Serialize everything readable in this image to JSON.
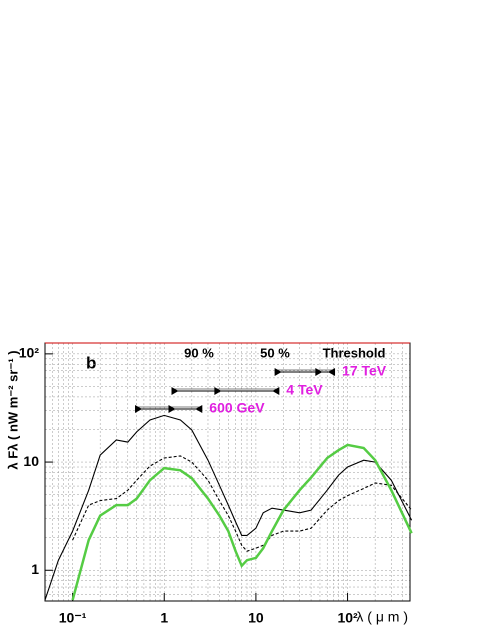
{
  "chart_data": {
    "type": "line",
    "panel_label": "b",
    "x_label": "λ ( μ m )",
    "y_label": "λ Fλ ( nW m⁻² sr⁻¹ )",
    "log_x": true,
    "log_y": true,
    "grid": true,
    "xlim": [
      0.05,
      480
    ],
    "ylim": [
      0.52,
      126
    ],
    "xticks": [
      {
        "value": 0.1,
        "label": "10⁻¹"
      },
      1,
      10,
      {
        "value": 100,
        "label": "10²"
      }
    ],
    "yticks": [
      1,
      10,
      {
        "value": 100,
        "label": "10²"
      }
    ],
    "x": [
      0.05,
      0.07,
      0.1,
      0.15,
      0.2,
      0.3,
      0.4,
      0.5,
      0.7,
      1,
      1.5,
      2,
      3,
      4,
      5,
      6,
      7,
      8,
      10,
      12,
      15,
      20,
      30,
      40,
      60,
      80,
      100,
      150,
      200,
      300,
      500
    ],
    "series": [
      {
        "color": "#000000",
        "dash": false,
        "values": [
          0.53,
          1.24,
          2.3,
          5.5,
          11.6,
          16,
          15.3,
          19,
          24.5,
          27,
          24.5,
          19.8,
          10.4,
          6.1,
          4.0,
          2.8,
          2.1,
          2.1,
          2.45,
          3.4,
          3.75,
          3.6,
          3.4,
          3.6,
          5.5,
          7.6,
          9.0,
          10.4,
          10,
          6.8,
          2.9
        ]
      },
      {
        "color": "#000000",
        "dash": true,
        "values": [
          null,
          null,
          1.9,
          4.0,
          4.4,
          4.6,
          5.5,
          6.8,
          9.2,
          10.9,
          11.4,
          10,
          6.8,
          4.4,
          3.2,
          2.3,
          1.7,
          1.5,
          1.6,
          1.7,
          2.1,
          2.3,
          2.3,
          2.45,
          3.6,
          4.4,
          4.9,
          5.7,
          6.4,
          6.1,
          3.6
        ]
      },
      {
        "color": "#55cc44",
        "dash": false,
        "values": [
          null,
          null,
          0.53,
          1.9,
          3.2,
          4.0,
          4.0,
          4.6,
          6.8,
          8.8,
          8.4,
          7.1,
          4.6,
          3.2,
          2.3,
          1.5,
          1.1,
          1.24,
          1.3,
          1.6,
          2.3,
          3.6,
          5.5,
          7.2,
          10.9,
          12.9,
          14.4,
          13.5,
          10.4,
          5.5,
          2.2
        ]
      }
    ],
    "range_headers": [
      "90 %",
      "50 %",
      "Threshold"
    ],
    "energy_ranges": [
      {
        "label": "17 TeV",
        "values": [
          16,
          48,
          73
        ]
      },
      {
        "label": "4 TeV",
        "values": [
          1.2,
          3.8,
          18
        ]
      },
      {
        "label": "600 GeV",
        "values": [
          0.48,
          1.2,
          2.6
        ]
      }
    ],
    "energy_color": "#e020e0"
  }
}
